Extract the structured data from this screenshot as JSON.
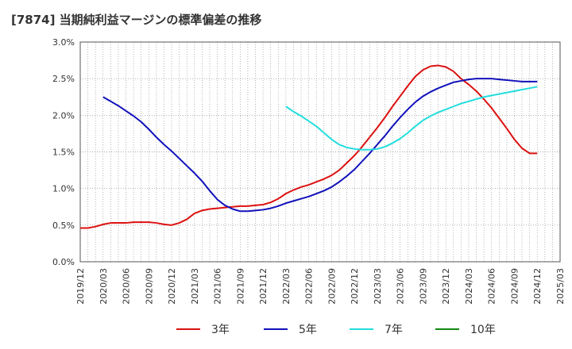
{
  "chart_data": {
    "type": "line",
    "title": "[7874]  当期純利益マージンの標準偏差の推移",
    "ylim": [
      0,
      0.03
    ],
    "y_ticks": [
      0,
      0.005,
      0.01,
      0.015,
      0.02,
      0.025,
      0.03
    ],
    "y_tick_labels": [
      "0.0%",
      "0.5%",
      "1.0%",
      "1.5%",
      "2.0%",
      "2.5%",
      "3.0%"
    ],
    "x_ticks": [
      "2019/12",
      "2020/03",
      "2020/06",
      "2020/09",
      "2020/12",
      "2021/03",
      "2021/06",
      "2021/09",
      "2021/12",
      "2022/03",
      "2022/06",
      "2022/09",
      "2022/12",
      "2023/03",
      "2023/06",
      "2023/09",
      "2023/12",
      "2024/03",
      "2024/06",
      "2024/09",
      "2024/12",
      "2025/03"
    ],
    "grid": true,
    "legend_position": "bottom",
    "series": [
      {
        "name": "3年",
        "color": "#dd1111",
        "x": [
          "2019/12",
          "2020/01",
          "2020/02",
          "2020/03",
          "2020/04",
          "2020/05",
          "2020/06",
          "2020/07",
          "2020/08",
          "2020/09",
          "2020/10",
          "2020/11",
          "2020/12",
          "2021/01",
          "2021/02",
          "2021/03",
          "2021/04",
          "2021/05",
          "2021/06",
          "2021/07",
          "2021/08",
          "2021/09",
          "2021/10",
          "2021/11",
          "2021/12",
          "2022/01",
          "2022/02",
          "2022/03",
          "2022/04",
          "2022/05",
          "2022/06",
          "2022/07",
          "2022/08",
          "2022/09",
          "2022/10",
          "2022/11",
          "2022/12",
          "2023/01",
          "2023/02",
          "2023/03",
          "2023/04",
          "2023/05",
          "2023/06",
          "2023/07",
          "2023/08",
          "2023/09",
          "2023/10",
          "2023/11",
          "2023/12",
          "2024/01",
          "2024/02",
          "2024/03",
          "2024/04",
          "2024/05",
          "2024/06",
          "2024/07",
          "2024/08",
          "2024/09",
          "2024/10",
          "2024/11",
          "2024/12"
        ],
        "values": [
          0.0046,
          0.0046,
          0.0048,
          0.0051,
          0.0053,
          0.0053,
          0.0053,
          0.0054,
          0.0054,
          0.0054,
          0.0053,
          0.0051,
          0.005,
          0.0053,
          0.0058,
          0.0066,
          0.007,
          0.0072,
          0.0073,
          0.0074,
          0.0075,
          0.0076,
          0.0076,
          0.0077,
          0.0078,
          0.0081,
          0.0086,
          0.0093,
          0.0098,
          0.0102,
          0.0105,
          0.0109,
          0.0113,
          0.0118,
          0.0125,
          0.0135,
          0.0145,
          0.0157,
          0.017,
          0.0183,
          0.0197,
          0.0212,
          0.0226,
          0.024,
          0.0253,
          0.0262,
          0.0267,
          0.0268,
          0.0266,
          0.026,
          0.025,
          0.0242,
          0.0233,
          0.0222,
          0.021,
          0.0196,
          0.0182,
          0.0167,
          0.0155,
          0.0148,
          0.0148
        ]
      },
      {
        "name": "5年",
        "color": "#1111bb",
        "x": [
          "2020/03",
          "2020/04",
          "2020/05",
          "2020/06",
          "2020/07",
          "2020/08",
          "2020/09",
          "2020/10",
          "2020/11",
          "2020/12",
          "2021/01",
          "2021/02",
          "2021/03",
          "2021/04",
          "2021/05",
          "2021/06",
          "2021/07",
          "2021/08",
          "2021/09",
          "2021/10",
          "2021/11",
          "2021/12",
          "2022/01",
          "2022/02",
          "2022/03",
          "2022/04",
          "2022/05",
          "2022/06",
          "2022/07",
          "2022/08",
          "2022/09",
          "2022/10",
          "2022/11",
          "2022/12",
          "2023/01",
          "2023/02",
          "2023/03",
          "2023/04",
          "2023/05",
          "2023/06",
          "2023/07",
          "2023/08",
          "2023/09",
          "2023/10",
          "2023/11",
          "2023/12",
          "2024/01",
          "2024/02",
          "2024/03",
          "2024/04",
          "2024/05",
          "2024/06",
          "2024/07",
          "2024/08",
          "2024/09",
          "2024/10",
          "2024/11",
          "2024/12"
        ],
        "values": [
          0.0225,
          0.0219,
          0.0213,
          0.0206,
          0.0199,
          0.0191,
          0.0181,
          0.017,
          0.016,
          0.0151,
          0.0141,
          0.0131,
          0.0121,
          0.011,
          0.0097,
          0.0085,
          0.0077,
          0.0072,
          0.0069,
          0.0069,
          0.007,
          0.0071,
          0.0073,
          0.0076,
          0.008,
          0.0083,
          0.0086,
          0.0089,
          0.0093,
          0.0097,
          0.0102,
          0.0109,
          0.0117,
          0.0126,
          0.0137,
          0.0148,
          0.016,
          0.0172,
          0.0185,
          0.0197,
          0.0208,
          0.0218,
          0.0226,
          0.0232,
          0.0237,
          0.0241,
          0.0245,
          0.0247,
          0.0249,
          0.025,
          0.025,
          0.025,
          0.0249,
          0.0248,
          0.0247,
          0.0246,
          0.0246,
          0.0246
        ]
      },
      {
        "name": "7年",
        "color": "#22dddd",
        "x": [
          "2022/03",
          "2022/04",
          "2022/05",
          "2022/06",
          "2022/07",
          "2022/08",
          "2022/09",
          "2022/10",
          "2022/11",
          "2022/12",
          "2023/01",
          "2023/02",
          "2023/03",
          "2023/04",
          "2023/05",
          "2023/06",
          "2023/07",
          "2023/08",
          "2023/09",
          "2023/10",
          "2023/11",
          "2023/12",
          "2024/01",
          "2024/02",
          "2024/03",
          "2024/04",
          "2024/05",
          "2024/06",
          "2024/07",
          "2024/08",
          "2024/09",
          "2024/10",
          "2024/11",
          "2024/12"
        ],
        "values": [
          0.0212,
          0.0205,
          0.0199,
          0.0192,
          0.0185,
          0.0176,
          0.0167,
          0.016,
          0.0156,
          0.0154,
          0.0153,
          0.0153,
          0.0154,
          0.0157,
          0.0162,
          0.0168,
          0.0176,
          0.0185,
          0.0193,
          0.0199,
          0.0204,
          0.0208,
          0.0212,
          0.0216,
          0.0219,
          0.0222,
          0.0225,
          0.0227,
          0.0229,
          0.0231,
          0.0233,
          0.0235,
          0.0237,
          0.0239
        ]
      },
      {
        "name": "10年",
        "color": "#118811",
        "x": [],
        "values": []
      }
    ]
  }
}
